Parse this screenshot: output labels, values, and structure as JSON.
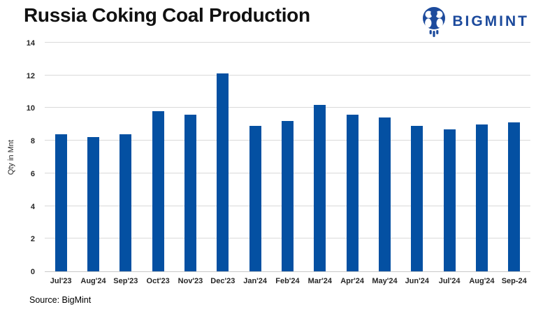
{
  "header": {
    "title": "Russia Coking Coal Production",
    "logo_text": "BIGMINT"
  },
  "footer": {
    "source": "Source: BigMint"
  },
  "colors": {
    "bar": "#0450A2",
    "logo": "#1C4A9C",
    "gridline": "#d9d9d9",
    "axis_line": "#c8c8c8",
    "tick_text": "#262626"
  },
  "chart_data": {
    "type": "bar",
    "title": "Russia Coking Coal Production",
    "categories": [
      "Jul'23",
      "Aug'24",
      "Sep'23",
      "Oct'23",
      "Nov'23",
      "Dec'23",
      "Jan'24",
      "Feb'24",
      "Mar'24",
      "Apr'24",
      "May'24",
      "Jun'24",
      "Jul'24",
      "Aug'24",
      "Sep-24"
    ],
    "values": [
      8.4,
      8.2,
      8.4,
      9.8,
      9.6,
      12.1,
      8.9,
      9.2,
      10.2,
      9.6,
      9.4,
      8.9,
      8.7,
      9.0,
      9.1
    ],
    "xlabel": "",
    "ylabel": "Qty in Mnt",
    "ylim": [
      0,
      14
    ],
    "yticks": [
      0,
      2,
      4,
      6,
      8,
      10,
      12,
      14
    ],
    "grid": true,
    "legend": false
  }
}
